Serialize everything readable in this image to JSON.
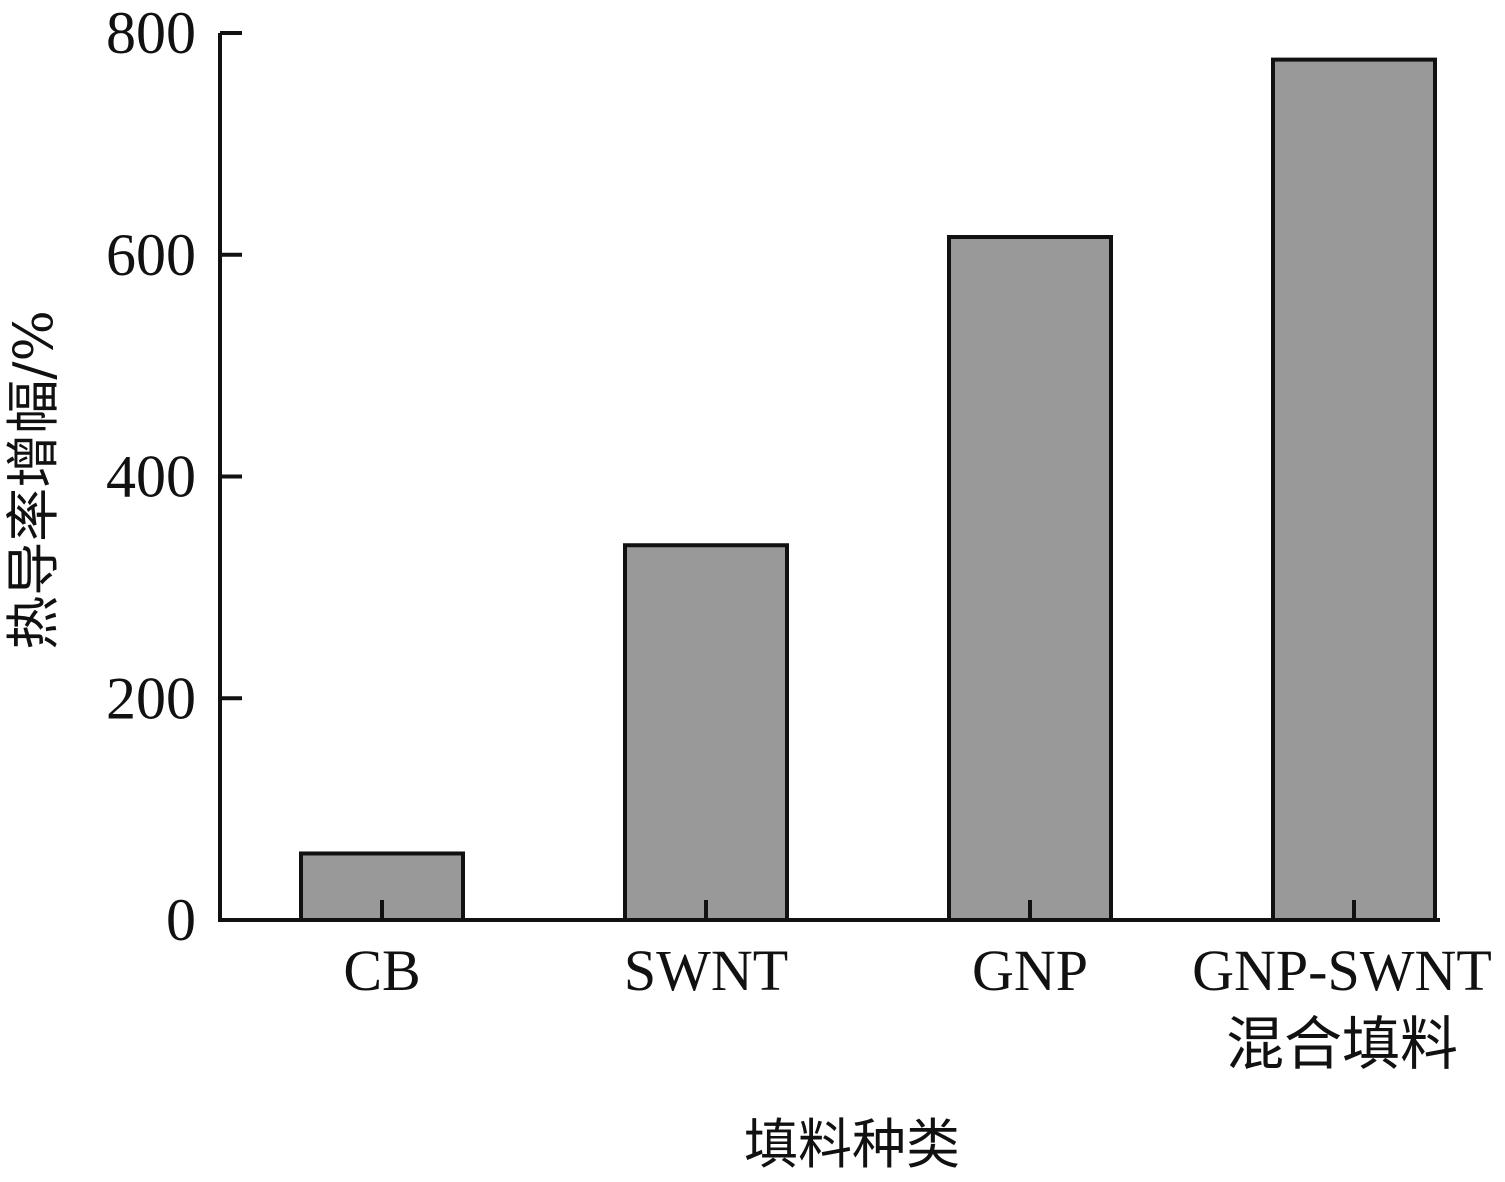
{
  "chart_data": {
    "type": "bar",
    "categories": [
      [
        "CB"
      ],
      [
        "SWNT"
      ],
      [
        "GNP"
      ],
      [
        "GNP-SWNT",
        "混合填料"
      ]
    ],
    "values": [
      60,
      338,
      616,
      776
    ],
    "xlabel": "填料种类",
    "ylabel": "热导率增幅/%",
    "ylim": [
      0,
      800
    ],
    "yticks": [
      0,
      200,
      400,
      600,
      800
    ],
    "grid": false,
    "legend": "none",
    "bar_color": "#999999",
    "bar_edge_color": "#111111"
  }
}
